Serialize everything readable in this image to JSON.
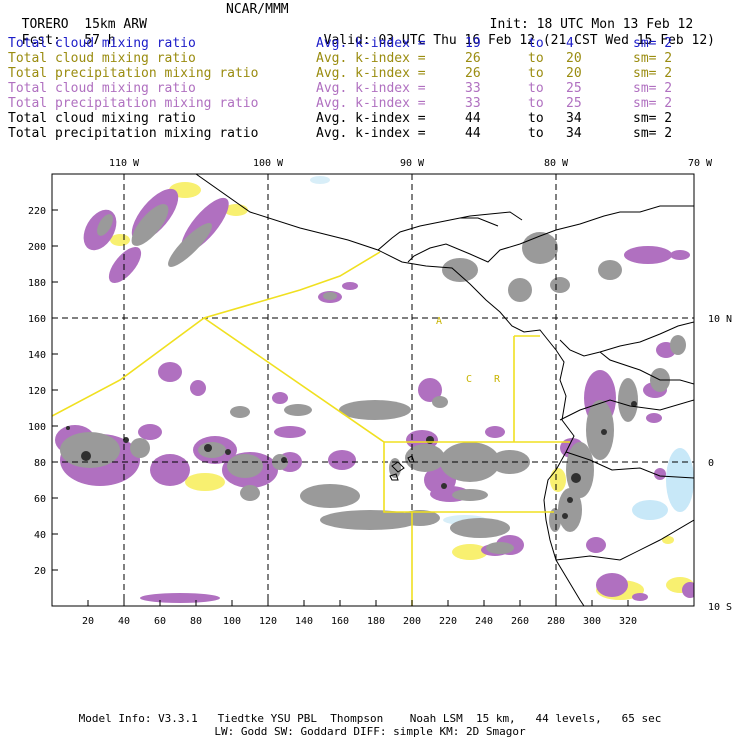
{
  "header": {
    "model": "TORERO",
    "resolution": "15km ARW",
    "org": "NCAR/MMM",
    "init_label": "Init:",
    "init": "18 UTC Mon 13 Feb 12",
    "fcst_label": "Fcst:",
    "fcst": "57 h",
    "valid_label": "Valid:",
    "valid": "03 UTC Thu 16 Feb 12 (21 CST Wed 15 Feb 12)"
  },
  "legend": [
    {
      "field": "Total cloud mixing ratio",
      "label": "Avg. k-index =",
      "from": "19",
      "to_word": "to",
      "to": "4",
      "sm": "sm= 2",
      "color": "#1c1cc8"
    },
    {
      "field": "Total cloud mixing ratio",
      "label": "Avg. k-index =",
      "from": "26",
      "to_word": "to",
      "to": "20",
      "sm": "sm= 2",
      "color": "#9a8c10"
    },
    {
      "field": "Total precipitation mixing ratio",
      "label": "Avg. k-index =",
      "from": "26",
      "to_word": "to",
      "to": "20",
      "sm": "sm= 2",
      "color": "#9a8c10"
    },
    {
      "field": "Total cloud mixing ratio",
      "label": "Avg. k-index =",
      "from": "33",
      "to_word": "to",
      "to": "25",
      "sm": "sm= 2",
      "color": "#b070c0"
    },
    {
      "field": "Total precipitation mixing ratio",
      "label": "Avg. k-index =",
      "from": "33",
      "to_word": "to",
      "to": "25",
      "sm": "sm= 2",
      "color": "#b070c0"
    },
    {
      "field": "Total cloud mixing ratio",
      "label": "Avg. k-index =",
      "from": "44",
      "to_word": "to",
      "to": "34",
      "sm": "sm= 2",
      "color": "#000000"
    },
    {
      "field": "Total precipitation mixing ratio",
      "label": "Avg. k-index =",
      "from": "44",
      "to_word": "to",
      "to": "34",
      "sm": "sm= 2",
      "color": "#000000"
    }
  ],
  "map": {
    "top_labels": [
      "110 W",
      "100 W",
      "90 W",
      "80 W",
      "70 W"
    ],
    "right_labels": [
      "10 N",
      "0",
      "10 S"
    ],
    "left_ticks": [
      "20",
      "40",
      "60",
      "80",
      "100",
      "120",
      "140",
      "160",
      "180",
      "200",
      "220"
    ],
    "bottom_ticks": [
      "20",
      "40",
      "60",
      "80",
      "100",
      "120",
      "140",
      "160",
      "180",
      "200",
      "220",
      "240",
      "260",
      "280",
      "300",
      "320"
    ],
    "inner_labels": [
      "A",
      "C",
      "R"
    ]
  },
  "footer": {
    "line1": "Model Info: V3.3.1   Tiedtke YSU PBL  Thompson    Noah LSM  15 km,   44 levels,   65 sec",
    "line2": "LW: Godd SW: Goddard DIFF: simple KM: 2D Smagor"
  },
  "colors": {
    "gray": "#9a9a9a",
    "dark": "#303030",
    "purple": "#b070c0",
    "yellow": "#f8f070",
    "lightblue": "#c8e8f8",
    "boundary": "#f0e020"
  }
}
